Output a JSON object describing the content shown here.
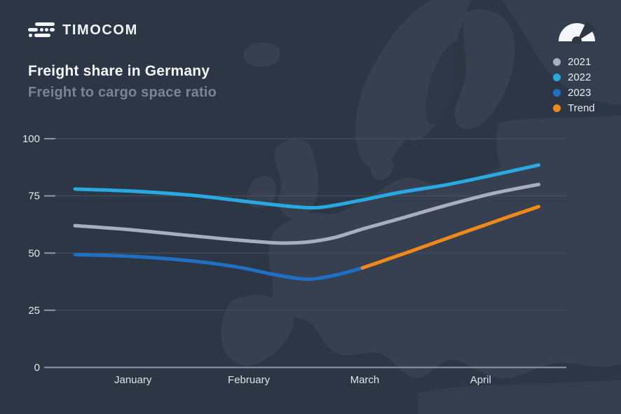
{
  "brand": {
    "logo_text": "TIMOCOM"
  },
  "header": {
    "title": "Freight share in Germany",
    "subtitle": "Freight to cargo space ratio"
  },
  "chart_data": {
    "type": "line",
    "title": "Freight share in Germany",
    "subtitle": "Freight to cargo space ratio",
    "x_categories": [
      "January",
      "February",
      "March",
      "April"
    ],
    "y_ticks": [
      100,
      75,
      50,
      25,
      0
    ],
    "ylim": [
      0,
      100
    ],
    "grid": "horizontal",
    "legend_position": "top-right",
    "series": [
      {
        "name": "2021",
        "color": "#a9aebd",
        "points": [
          [
            0,
            62
          ],
          [
            0.12,
            60.2
          ],
          [
            0.25,
            57.6
          ],
          [
            0.35,
            55.7
          ],
          [
            0.44,
            54.4
          ],
          [
            0.5,
            54.8
          ],
          [
            0.56,
            56.8
          ],
          [
            0.62,
            60.5
          ],
          [
            0.7,
            65
          ],
          [
            0.8,
            70.8
          ],
          [
            0.9,
            76
          ],
          [
            1,
            80
          ]
        ]
      },
      {
        "name": "2022",
        "color": "#29a9e1",
        "points": [
          [
            0,
            78
          ],
          [
            0.12,
            77.1
          ],
          [
            0.25,
            75.3
          ],
          [
            0.38,
            72.3
          ],
          [
            0.47,
            70.3
          ],
          [
            0.53,
            70
          ],
          [
            0.61,
            72.8
          ],
          [
            0.7,
            76.5
          ],
          [
            0.8,
            79.8
          ],
          [
            0.9,
            84
          ],
          [
            1,
            88.5
          ]
        ]
      },
      {
        "name": "2023",
        "color": "#1f6fc6",
        "points": [
          [
            0,
            49.3
          ],
          [
            0.12,
            48.6
          ],
          [
            0.25,
            46.6
          ],
          [
            0.35,
            43.9
          ],
          [
            0.43,
            40.6
          ],
          [
            0.5,
            38.6
          ],
          [
            0.56,
            40.3
          ],
          [
            0.62,
            43.5
          ]
        ]
      },
      {
        "name": "Trend",
        "color": "#f0891a",
        "points": [
          [
            0.62,
            43.5
          ],
          [
            0.72,
            50.5
          ],
          [
            0.82,
            57.7
          ],
          [
            0.92,
            64.8
          ],
          [
            1,
            70.3
          ]
        ]
      }
    ]
  },
  "colors": {
    "background": "#2d3644",
    "map_land": "#4d5a6e",
    "grid_line": "#454e5b",
    "axis_line": "#8f97a3",
    "axis_label": "#e4e8ed",
    "month_label": "#dfe3e8",
    "title": "#f4f6f8",
    "subtitle": "#7b8492"
  }
}
